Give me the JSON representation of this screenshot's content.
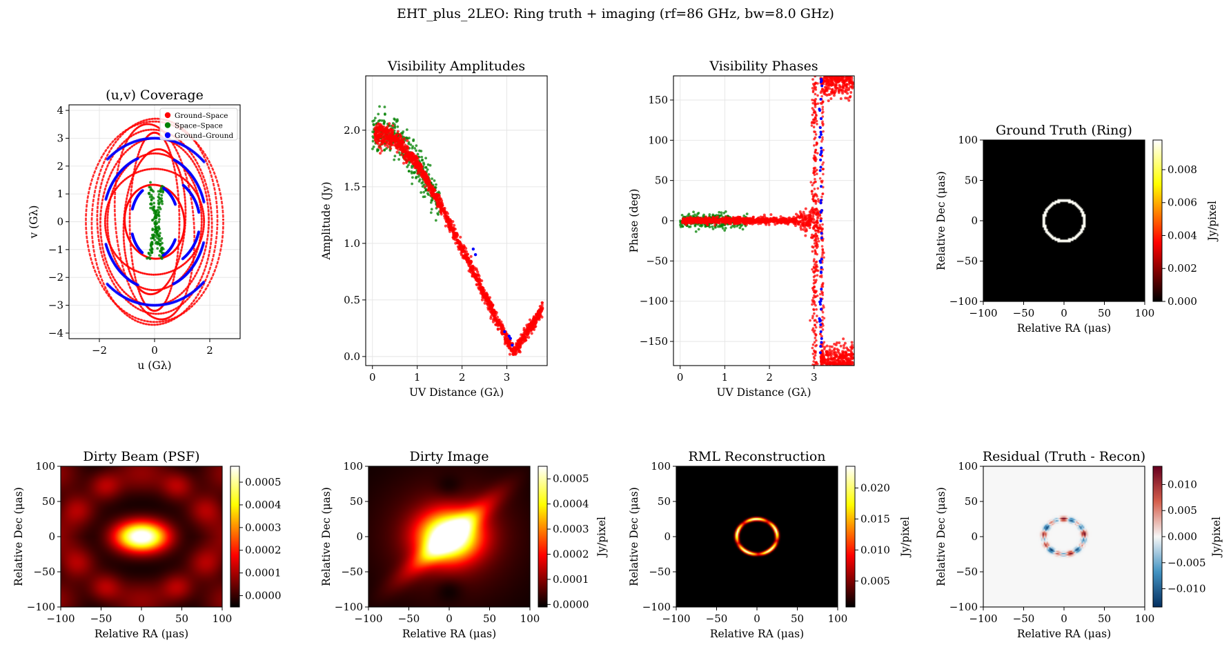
{
  "figure": {
    "suptitle": "EHT_plus_2LEO: Ring truth + imaging (rf=86 GHz, bw=8.0 GHz)"
  },
  "colors": {
    "ground_space": "#ff0000",
    "space_space": "#008000",
    "ground_ground": "#0000ff",
    "hot_colormap": [
      "#000000",
      "#ff0000",
      "#ffff00",
      "#ffffff"
    ],
    "residual_colormap": [
      "#053061",
      "#f7f7f7",
      "#67001f"
    ]
  },
  "chart_data": [
    {
      "id": "uv",
      "type": "scatter",
      "title": "(u,v) Coverage",
      "xlabel": "u (Gλ)",
      "ylabel": "v (Gλ)",
      "xlim": [
        -3.1,
        3.1
      ],
      "ylim": [
        -4.2,
        4.2
      ],
      "xticks": [
        -2,
        0,
        2
      ],
      "yticks": [
        -4,
        -3,
        -2,
        -1,
        0,
        1,
        2,
        3,
        4
      ],
      "grid": true,
      "legend_position": "top-right",
      "series": [
        {
          "name": "Ground–Space",
          "color": "#ff0000",
          "description": "dense elliptical tracks spanning u∈[-2.6,2.6], v∈[-3.8,3.8]"
        },
        {
          "name": "Space–Space",
          "color": "#008000",
          "description": "short tracks near origin, |u|<0.3, |v|<1.5"
        },
        {
          "name": "Ground–Ground",
          "color": "#0000ff",
          "description": "arc segments at radius ~1.0–3.3 Gλ"
        }
      ]
    },
    {
      "id": "amp",
      "type": "scatter",
      "title": "Visibility Amplitudes",
      "xlabel": "UV Distance (Gλ)",
      "ylabel": "Amplitude (Jy)",
      "xlim": [
        -0.15,
        3.9
      ],
      "ylim": [
        -0.08,
        2.48
      ],
      "xticks": [
        0,
        1,
        2,
        3
      ],
      "yticks": [
        0.0,
        0.5,
        1.0,
        1.5,
        2.0
      ],
      "grid": true,
      "trend": {
        "x": [
          0,
          0.5,
          1.0,
          1.5,
          2.0,
          2.5,
          3.0,
          3.15,
          3.4,
          3.8
        ],
        "y": [
          1.98,
          1.93,
          1.7,
          1.35,
          0.95,
          0.55,
          0.15,
          0.03,
          0.18,
          0.42
        ]
      }
    },
    {
      "id": "phase",
      "type": "scatter",
      "title": "Visibility Phases",
      "xlabel": "UV Distance (Gλ)",
      "ylabel": "Phase (deg)",
      "xlim": [
        -0.15,
        3.9
      ],
      "ylim": [
        -180,
        180
      ],
      "xticks": [
        0,
        1,
        2,
        3
      ],
      "yticks": [
        -150,
        -100,
        -50,
        0,
        50,
        100,
        150
      ],
      "grid": true,
      "description": "phase ~0 deg up to 3.15 Gλ, jump to ±180 deg beyond the first null"
    },
    {
      "id": "truth",
      "type": "heatmap",
      "title": "Ground Truth (Ring)",
      "xlabel": "Relative RA (μas)",
      "ylabel": "Relative Dec (μas)",
      "xlim": [
        -100,
        100
      ],
      "ylim": [
        -100,
        100
      ],
      "xticks": [
        -100,
        -50,
        0,
        50,
        100
      ],
      "yticks": [
        -100,
        -50,
        0,
        50,
        100
      ],
      "colorbar": {
        "label": "Jy/pixel",
        "min": 0,
        "max": 0.0098,
        "cmap": "hot",
        "ticks": [
          "0.000",
          "0.002",
          "0.004",
          "0.006",
          "0.008"
        ],
        "tick_values": [
          0,
          0.002,
          0.004,
          0.006,
          0.008
        ]
      },
      "ring": {
        "radius_uas": 25,
        "width_uas": 3
      }
    },
    {
      "id": "psf",
      "type": "heatmap",
      "title": "Dirty Beam (PSF)",
      "xlabel": "Relative RA (μas)",
      "ylabel": "Relative Dec (μas)",
      "xlim": [
        -100,
        100
      ],
      "ylim": [
        -100,
        100
      ],
      "xticks": [
        -100,
        -50,
        0,
        50,
        100
      ],
      "yticks": [
        -100,
        -50,
        0,
        50,
        100
      ],
      "colorbar": {
        "label": "",
        "min": -5e-05,
        "max": 0.00057,
        "cmap": "hot",
        "ticks": [
          "0.0000",
          "0.0001",
          "0.0002",
          "0.0003",
          "0.0004",
          "0.0005"
        ],
        "tick_values": [
          0,
          0.0001,
          0.0002,
          0.0003,
          0.0004,
          0.0005
        ]
      }
    },
    {
      "id": "dirty",
      "type": "heatmap",
      "title": "Dirty Image",
      "xlabel": "Relative RA (μas)",
      "ylabel": "Relative Dec (μas)",
      "xlim": [
        -100,
        100
      ],
      "ylim": [
        -100,
        100
      ],
      "xticks": [
        -100,
        -50,
        0,
        50,
        100
      ],
      "yticks": [
        -100,
        -50,
        0,
        50,
        100
      ],
      "colorbar": {
        "label": "Jy/pixel",
        "min": -1e-05,
        "max": 0.00055,
        "cmap": "hot",
        "ticks": [
          "0.0000",
          "0.0001",
          "0.0002",
          "0.0003",
          "0.0004",
          "0.0005"
        ],
        "tick_values": [
          0,
          0.0001,
          0.0002,
          0.0003,
          0.0004,
          0.0005
        ]
      }
    },
    {
      "id": "rml",
      "type": "heatmap",
      "title": "RML Reconstruction",
      "xlabel": "Relative RA (μas)",
      "ylabel": "Relative Dec (μas)",
      "xlim": [
        -100,
        100
      ],
      "ylim": [
        -100,
        100
      ],
      "xticks": [
        -100,
        -50,
        0,
        50,
        100
      ],
      "yticks": [
        -100,
        -50,
        0,
        50,
        100
      ],
      "colorbar": {
        "label": "Jy/pixel",
        "min": 0.0008,
        "max": 0.0235,
        "cmap": "hot",
        "ticks": [
          "0.005",
          "0.010",
          "0.015",
          "0.020"
        ],
        "tick_values": [
          0.005,
          0.01,
          0.015,
          0.02
        ]
      }
    },
    {
      "id": "resid",
      "type": "heatmap",
      "title": "Residual (Truth - Recon)",
      "xlabel": "Relative RA (μas)",
      "ylabel": "Relative Dec (μas)",
      "xlim": [
        -100,
        100
      ],
      "ylim": [
        -100,
        100
      ],
      "xticks": [
        -100,
        -50,
        0,
        50,
        100
      ],
      "yticks": [
        -100,
        -50,
        0,
        50,
        100
      ],
      "colorbar": {
        "label": "Jy/pixel",
        "min": -0.0135,
        "max": 0.0135,
        "cmap": "RdBu_r",
        "ticks": [
          "−0.010",
          "−0.005",
          "0.000",
          "0.005",
          "0.010"
        ],
        "tick_values": [
          -0.01,
          -0.005,
          0.0,
          0.005,
          0.01
        ]
      }
    }
  ]
}
